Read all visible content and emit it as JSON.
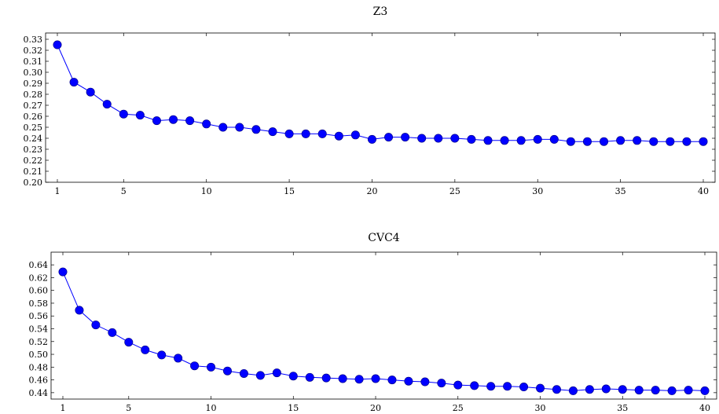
{
  "chart_data": [
    {
      "type": "line",
      "title": "Z3",
      "xlabel": "",
      "ylabel": "",
      "xlim": [
        1,
        40
      ],
      "ylim": [
        0.2,
        0.33
      ],
      "xticks": [
        1,
        5,
        10,
        15,
        20,
        25,
        30,
        35,
        40
      ],
      "yticks": [
        "0.20",
        "0.21",
        "0.22",
        "0.23",
        "0.24",
        "0.25",
        "0.26",
        "0.27",
        "0.28",
        "0.29",
        "0.30",
        "0.31",
        "0.32",
        "0.33"
      ],
      "grid": false,
      "color": "#0000ff",
      "series": [
        {
          "x": [
            1,
            2,
            3,
            4,
            5,
            6,
            7,
            8,
            9,
            10,
            11,
            12,
            13,
            14,
            15,
            16,
            17,
            18,
            19,
            20,
            21,
            22,
            23,
            24,
            25,
            26,
            27,
            28,
            29,
            30,
            31,
            32,
            33,
            34,
            35,
            36,
            37,
            38,
            39,
            40
          ],
          "values": [
            0.325,
            0.291,
            0.282,
            0.271,
            0.262,
            0.261,
            0.256,
            0.257,
            0.256,
            0.253,
            0.25,
            0.25,
            0.248,
            0.246,
            0.244,
            0.244,
            0.244,
            0.242,
            0.243,
            0.239,
            0.241,
            0.241,
            0.24,
            0.24,
            0.24,
            0.239,
            0.238,
            0.238,
            0.238,
            0.239,
            0.239,
            0.237,
            0.237,
            0.237,
            0.238,
            0.238,
            0.237,
            0.237,
            0.237,
            0.237
          ]
        }
      ]
    },
    {
      "type": "line",
      "title": "CVC4",
      "xlabel": "",
      "ylabel": "",
      "xlim": [
        1,
        40
      ],
      "ylim": [
        0.43,
        0.65
      ],
      "xticks": [
        1,
        5,
        10,
        15,
        20,
        25,
        30,
        35,
        40
      ],
      "yticks": [
        "0.44",
        "0.46",
        "0.48",
        "0.50",
        "0.52",
        "0.54",
        "0.56",
        "0.58",
        "0.60",
        "0.62",
        "0.64"
      ],
      "grid": false,
      "color": "#0000ff",
      "series": [
        {
          "x": [
            1,
            2,
            3,
            4,
            5,
            6,
            7,
            8,
            9,
            10,
            11,
            12,
            13,
            14,
            15,
            16,
            17,
            18,
            19,
            20,
            21,
            22,
            23,
            24,
            25,
            26,
            27,
            28,
            29,
            30,
            31,
            32,
            33,
            34,
            35,
            36,
            37,
            38,
            39,
            40
          ],
          "values": [
            0.629,
            0.569,
            0.546,
            0.534,
            0.519,
            0.507,
            0.499,
            0.494,
            0.482,
            0.48,
            0.474,
            0.47,
            0.467,
            0.471,
            0.466,
            0.464,
            0.463,
            0.462,
            0.461,
            0.462,
            0.46,
            0.458,
            0.457,
            0.455,
            0.452,
            0.451,
            0.45,
            0.45,
            0.449,
            0.447,
            0.445,
            0.443,
            0.445,
            0.446,
            0.445,
            0.444,
            0.444,
            0.443,
            0.444,
            0.443
          ]
        }
      ]
    }
  ]
}
